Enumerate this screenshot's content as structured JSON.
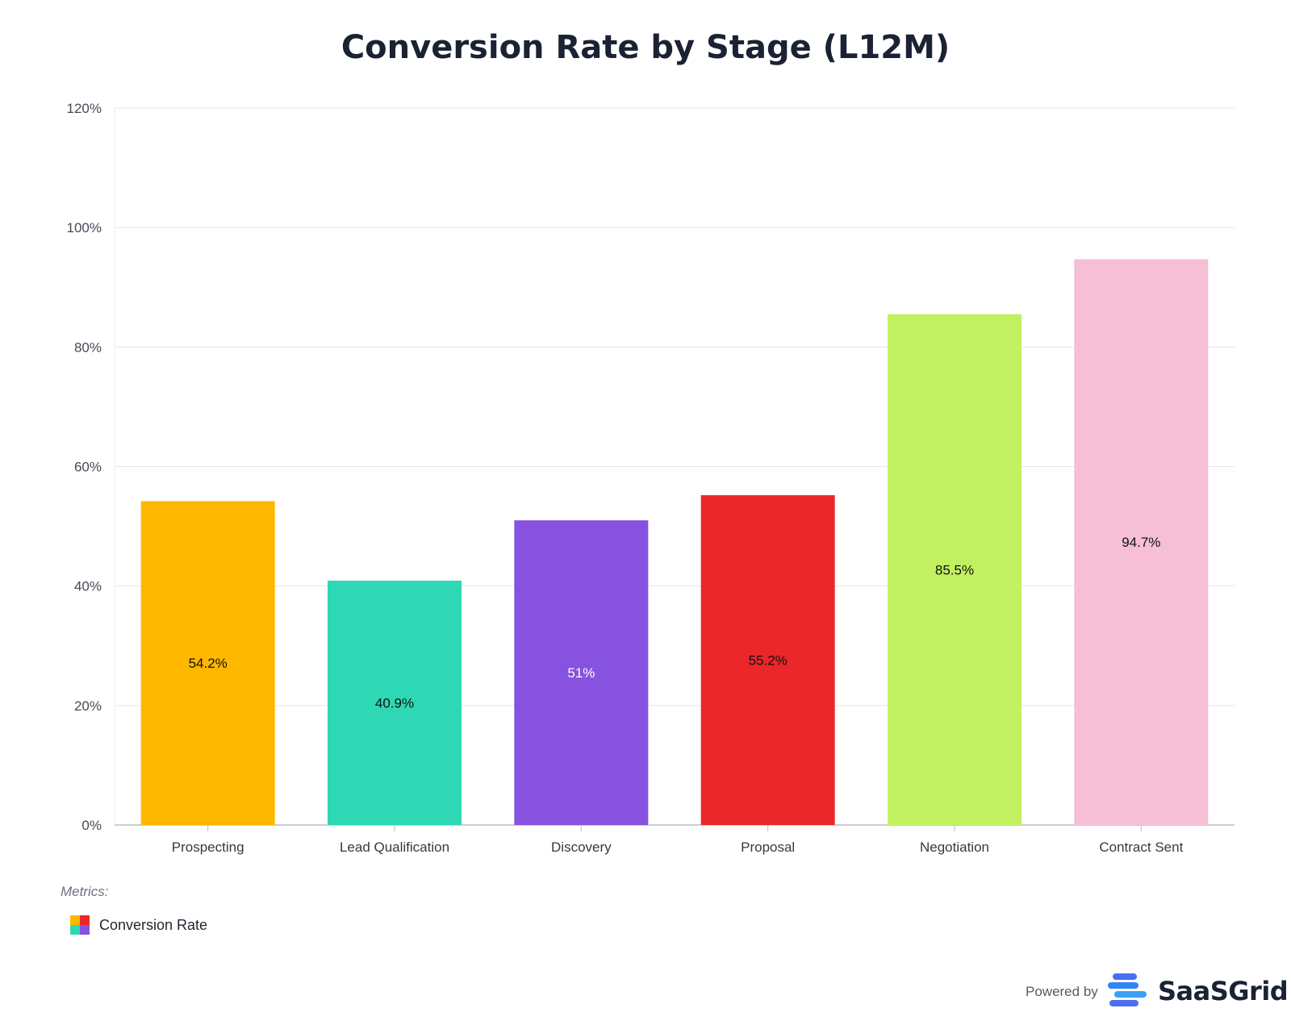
{
  "chart_data": {
    "type": "bar",
    "title": "Conversion Rate by Stage (L12M)",
    "categories": [
      "Prospecting",
      "Lead Qualification",
      "Discovery",
      "Proposal",
      "Negotiation",
      "Contract Sent"
    ],
    "series": [
      {
        "name": "Conversion Rate",
        "values": [
          54.2,
          40.9,
          51,
          55.2,
          85.5,
          94.7
        ],
        "labels": [
          "54.2%",
          "40.9%",
          "51%",
          "55.2%",
          "85.5%",
          "94.7%"
        ],
        "colors": [
          "#ffb800",
          "#2fd8b4",
          "#8752e0",
          "#eb272a",
          "#c1f060",
          "#f6bfd6"
        ],
        "label_colors": [
          "#111111",
          "#111111",
          "#ffffff",
          "#111111",
          "#111111",
          "#111111"
        ]
      }
    ],
    "ylim": [
      0,
      120
    ],
    "yticks": [
      0,
      20,
      40,
      60,
      80,
      100,
      120
    ],
    "ytick_labels": [
      "0%",
      "20%",
      "40%",
      "60%",
      "80%",
      "100%",
      "120%"
    ],
    "grid": true,
    "legend_position": "bottom-left"
  },
  "legend": {
    "heading": "Metrics:",
    "item_label": "Conversion Rate",
    "swatch_colors": [
      "#ffb800",
      "#eb272a",
      "#2fd8b4",
      "#8752e0"
    ]
  },
  "footer": {
    "powered_by": "Powered by",
    "brand": "SaaSGrid",
    "brand_colors": [
      "#4b6ff0",
      "#2f86f5",
      "#3aa0f8"
    ]
  }
}
